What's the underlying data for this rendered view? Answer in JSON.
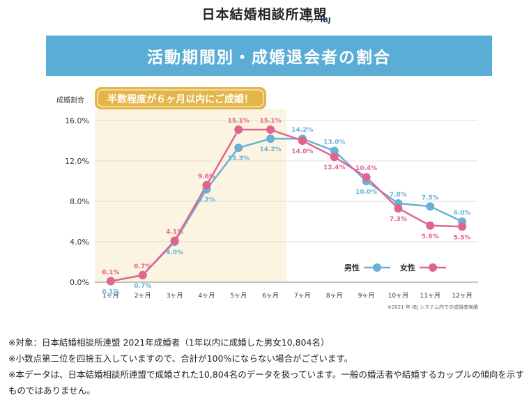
{
  "logo": {
    "title": "日本結婚相談所連盟",
    "by": "by",
    "brand": "IBJ"
  },
  "banner": {
    "title": "活動期間別・成婚退会者の割合"
  },
  "chart_data": {
    "type": "line",
    "title": "活動期間別・成婚退会者の割合",
    "ylabel": "成婚割合",
    "ylim": [
      0,
      16
    ],
    "yticks": [
      "0.0%",
      "4.0%",
      "8.0%",
      "12.0%",
      "16.0%"
    ],
    "categories": [
      "1ヶ月",
      "2ヶ月",
      "3ヶ月",
      "4ヶ月",
      "5ヶ月",
      "6ヶ月",
      "7ヶ月",
      "8ヶ月",
      "9ヶ月",
      "10ヶ月",
      "11ヶ月",
      "12ヶ月"
    ],
    "grid": true,
    "legend_position": "bottom-right",
    "callout": "半数程度が６ヶ月以内にご成婚！",
    "highlight_range": [
      "1ヶ月",
      "6ヶ月"
    ],
    "source_note": "※2021 年 IBJ システム内での成婚者実績",
    "series": [
      {
        "name": "男性",
        "color": "#6ab0d8",
        "values": [
          0.1,
          0.7,
          4.0,
          9.2,
          13.3,
          14.2,
          14.2,
          13.0,
          10.0,
          7.8,
          7.5,
          6.0
        ],
        "labels": [
          "0.1%",
          "0.7%",
          "4.0%",
          "9.2%",
          "13.3%",
          "14.2%",
          "14.2%",
          "13.0%",
          "10.0%",
          "7.8%",
          "7.5%",
          "6.0%"
        ]
      },
      {
        "name": "女性",
        "color": "#e0658e",
        "values": [
          0.1,
          0.7,
          4.1,
          9.6,
          15.1,
          15.1,
          14.0,
          12.4,
          10.4,
          7.3,
          5.6,
          5.5
        ],
        "labels": [
          "0.1%",
          "0.7%",
          "4.1%",
          "9.6%",
          "15.1%",
          "15.1%",
          "14.0%",
          "12.4%",
          "10.4%",
          "7.3%",
          "5.6%",
          "5.5%"
        ]
      }
    ]
  },
  "notes": [
    "※対象：日本結婚相談所連盟 2021年成婚者（1年以内に成婚した男女10,804名）",
    "※小数点第二位を四捨五入していますので、合計が100%にならない場合がございます。",
    "※本データは、日本結婚相談所連盟で成婚された10,804名のデータを扱っています。一般の婚活者や結婚するカップルの傾向を示すものではありません。"
  ]
}
